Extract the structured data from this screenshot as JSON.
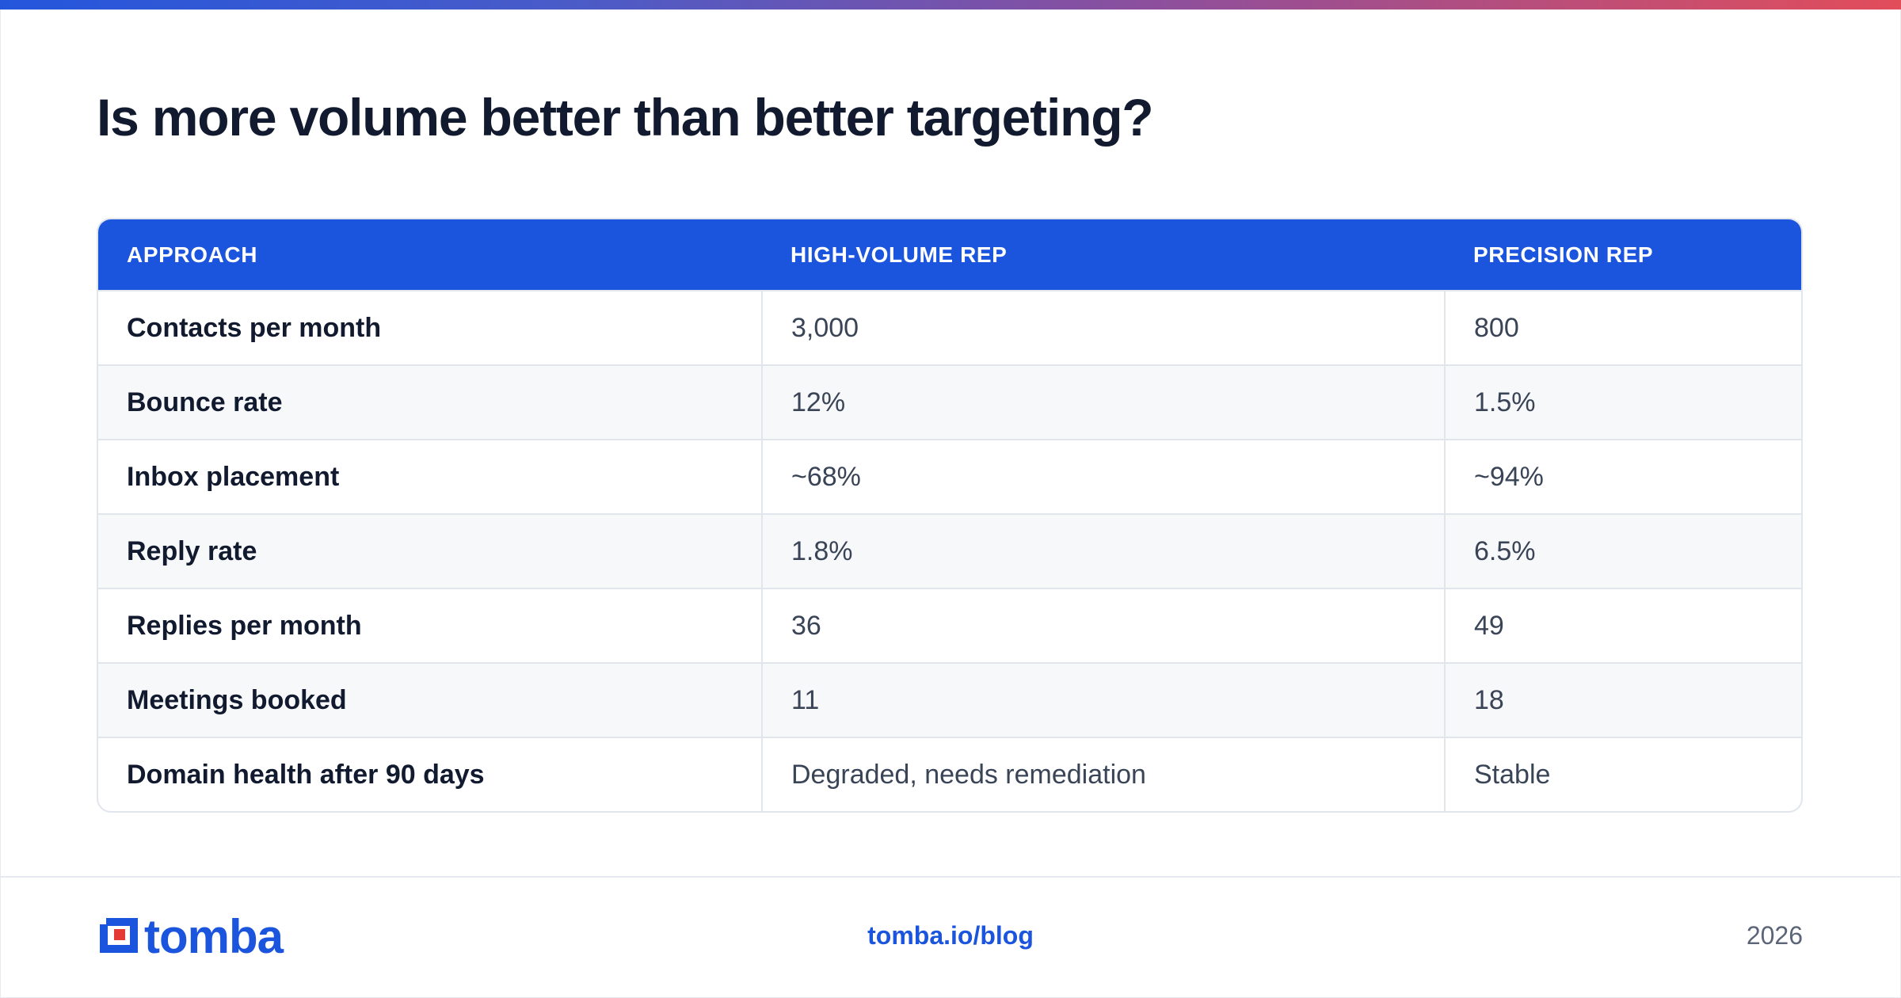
{
  "title": "Is more volume better than better targeting?",
  "table": {
    "headers": [
      "APPROACH",
      "HIGH-VOLUME REP",
      "PRECISION REP"
    ],
    "rows": [
      [
        "Contacts per month",
        "3,000",
        "800"
      ],
      [
        "Bounce rate",
        "12%",
        "1.5%"
      ],
      [
        "Inbox placement",
        "~68%",
        "~94%"
      ],
      [
        "Reply rate",
        "1.8%",
        "6.5%"
      ],
      [
        "Replies per month",
        "36",
        "49"
      ],
      [
        "Meetings booked",
        "11",
        "18"
      ],
      [
        "Domain health after 90 days",
        "Degraded, needs remediation",
        "Stable"
      ]
    ]
  },
  "footer": {
    "logo_text": "tomba",
    "link": "tomba.io/blog",
    "year": "2026"
  },
  "colors": {
    "brand_blue": "#1c55dd",
    "logo_accent_red": "#e53935",
    "title_text": "#111a2e"
  },
  "icons": {
    "logo_mark": "tomba-logo-mark-icon"
  }
}
